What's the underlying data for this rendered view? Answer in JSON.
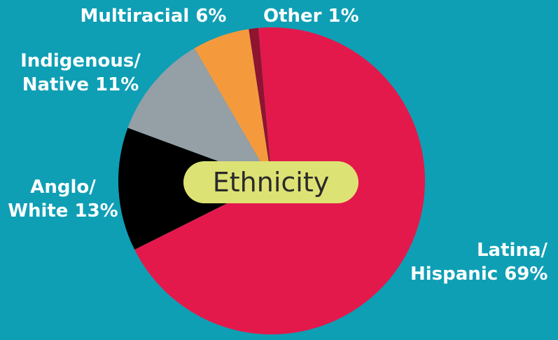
{
  "chart_data": {
    "type": "pie",
    "title": "Ethnicity",
    "start_angle_deg": -5,
    "direction": "clockwise",
    "slices": [
      {
        "label_lines": [
          "Latina/",
          "Hispanic 69%"
        ],
        "value": 69,
        "color": "#e3194b"
      },
      {
        "label_lines": [
          "Anglo/",
          "White 13%"
        ],
        "value": 13,
        "color": "#000000"
      },
      {
        "label_lines": [
          "Indigenous/",
          "Native 11%"
        ],
        "value": 11,
        "color": "#959fa6"
      },
      {
        "label_lines": [
          "Multiracial 6%"
        ],
        "value": 6,
        "color": "#f59a3c"
      },
      {
        "label_lines": [
          "Other 1%"
        ],
        "value": 1,
        "color": "#8e1430"
      }
    ],
    "legend": "none"
  }
}
